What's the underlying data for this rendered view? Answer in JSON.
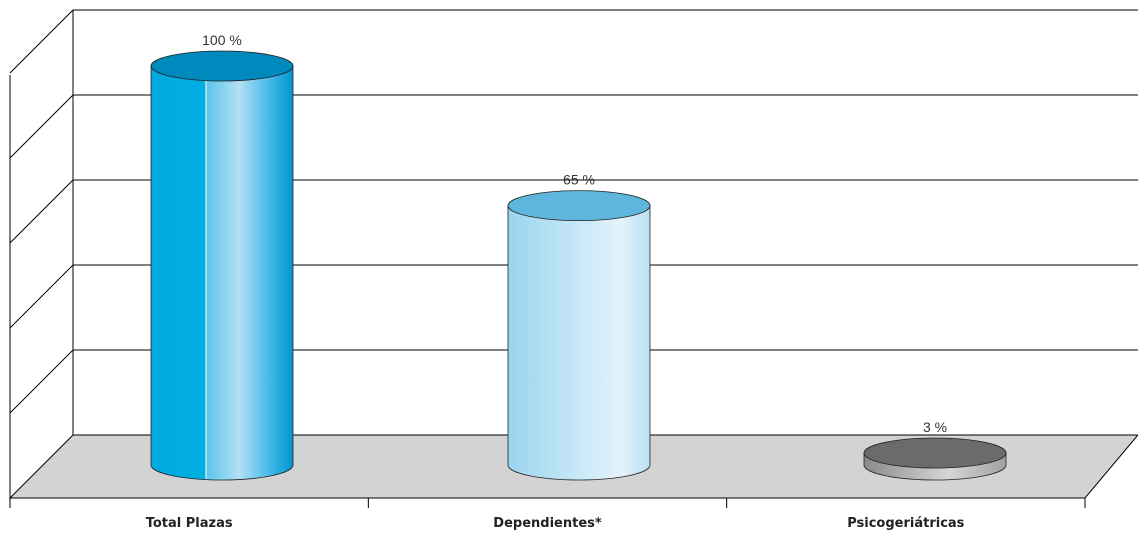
{
  "chart_data": {
    "type": "bar",
    "style": "3d-cylinder",
    "categories": [
      "Total Plazas",
      "Dependientes*",
      "Psicogeriátricas"
    ],
    "values": [
      100,
      65,
      3
    ],
    "value_labels": [
      "100 %",
      "65 %",
      "3 %"
    ],
    "ylim": [
      0,
      100
    ],
    "grid": true,
    "gridlines": 5,
    "colors": {
      "bars": [
        "#00a6dc",
        "#9fd6ef",
        "#808080"
      ],
      "floor": "#d3d3d3",
      "grid": "#000000"
    }
  }
}
